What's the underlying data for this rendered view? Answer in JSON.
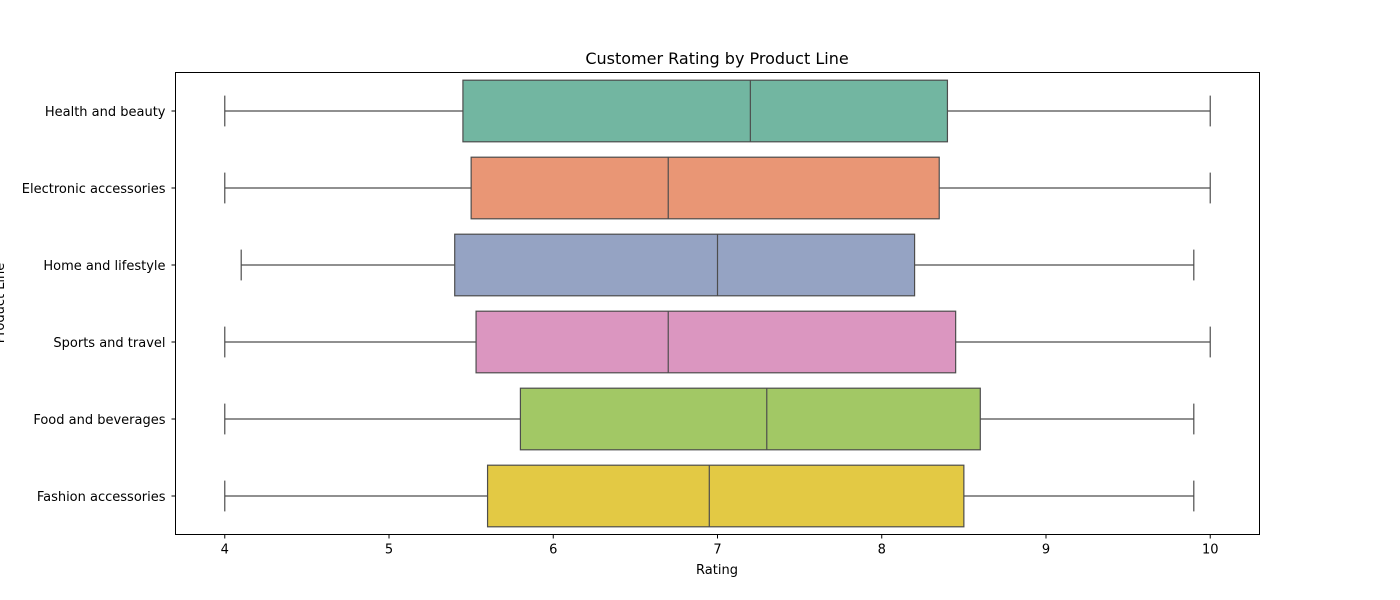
{
  "chart_data": {
    "type": "boxplot",
    "orientation": "horizontal",
    "title": "Customer Rating by Product Line",
    "xlabel": "Rating",
    "ylabel": "Product Line",
    "xlim": [
      3.7,
      10.3
    ],
    "xticks": [
      4,
      5,
      6,
      7,
      8,
      9,
      10
    ],
    "grid": false,
    "categories": [
      "Health and beauty",
      "Electronic accessories",
      "Home and lifestyle",
      "Sports and travel",
      "Food and beverages",
      "Fashion accessories"
    ],
    "boxes": [
      {
        "category": "Health and beauty",
        "min": 4.0,
        "q1": 5.45,
        "median": 7.2,
        "q3": 8.4,
        "max": 10.0,
        "color": "#72b6a1"
      },
      {
        "category": "Electronic accessories",
        "min": 4.0,
        "q1": 5.5,
        "median": 6.7,
        "q3": 8.35,
        "max": 10.0,
        "color": "#e99675"
      },
      {
        "category": "Home and lifestyle",
        "min": 4.1,
        "q1": 5.4,
        "median": 7.0,
        "q3": 8.2,
        "max": 9.9,
        "color": "#95a3c3"
      },
      {
        "category": "Sports and travel",
        "min": 4.0,
        "q1": 5.53,
        "median": 6.7,
        "q3": 8.45,
        "max": 10.0,
        "color": "#db96c0"
      },
      {
        "category": "Food and beverages",
        "min": 4.0,
        "q1": 5.8,
        "median": 7.3,
        "q3": 8.6,
        "max": 9.9,
        "color": "#a2c865"
      },
      {
        "category": "Fashion accessories",
        "min": 4.0,
        "q1": 5.6,
        "median": 6.95,
        "q3": 8.5,
        "max": 9.9,
        "color": "#e3c944"
      }
    ]
  }
}
